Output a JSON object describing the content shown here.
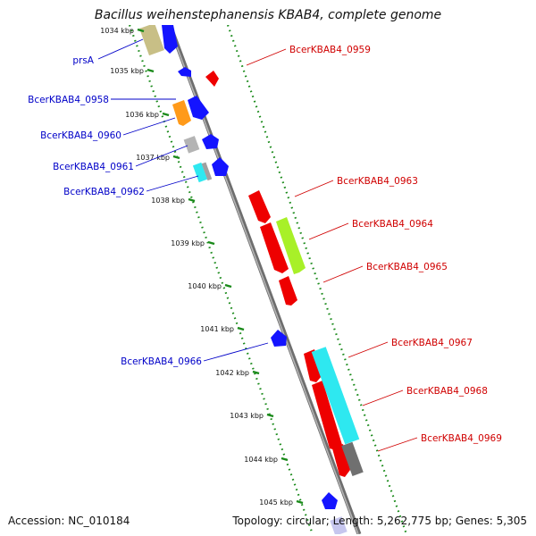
{
  "title": "Bacillus weihenstephanensis KBAB4, complete genome",
  "footer": {
    "accession": "Accession: NC_010184",
    "topology": "Topology: circular; Length: 5,262,775 bp; Genes: 5,305"
  },
  "colors": {
    "forward_label": "#d00000",
    "reverse_label": "#0000c8",
    "ring_dots": "#1a8a1a",
    "backbone": "#808080"
  },
  "ticks": [
    {
      "label": "1034 kbp"
    },
    {
      "label": "1035 kbp"
    },
    {
      "label": "1036 kbp"
    },
    {
      "label": "1037 kbp"
    },
    {
      "label": "1038 kbp"
    },
    {
      "label": "1039 kbp"
    },
    {
      "label": "1040 kbp"
    },
    {
      "label": "1041 kbp"
    },
    {
      "label": "1042 kbp"
    },
    {
      "label": "1043 kbp"
    },
    {
      "label": "1044 kbp"
    },
    {
      "label": "1045 kbp"
    }
  ],
  "reverse_labels": [
    {
      "text": "prsA"
    },
    {
      "text": "BcerKBAB4_0958"
    },
    {
      "text": "BcerKBAB4_0960"
    },
    {
      "text": "BcerKBAB4_0961"
    },
    {
      "text": "BcerKBAB4_0962"
    },
    {
      "text": "BcerKBAB4_0966"
    }
  ],
  "forward_labels": [
    {
      "text": "BcerKBAB4_0959"
    },
    {
      "text": "BcerKBAB4_0963"
    },
    {
      "text": "BcerKBAB4_0964"
    },
    {
      "text": "BcerKBAB4_0965"
    },
    {
      "text": "BcerKBAB4_0967"
    },
    {
      "text": "BcerKBAB4_0968"
    },
    {
      "text": "BcerKBAB4_0969"
    }
  ]
}
